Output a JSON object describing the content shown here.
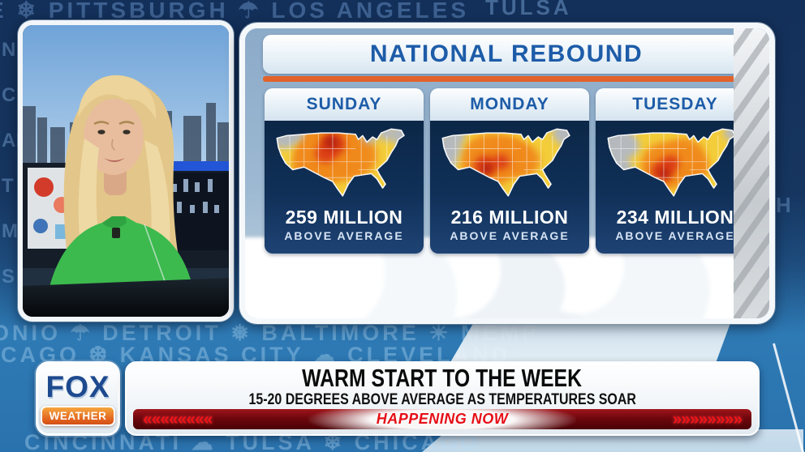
{
  "station": {
    "logo_top": "FOX",
    "logo_bottom": "WEATHER"
  },
  "panel": {
    "title": "NATIONAL REBOUND",
    "columns": [
      {
        "day": "SUNDAY",
        "value": "259 MILLION",
        "caption": "ABOVE AVERAGE"
      },
      {
        "day": "MONDAY",
        "value": "216 MILLION",
        "caption": "ABOVE AVERAGE"
      },
      {
        "day": "TUESDAY",
        "value": "234 MILLION",
        "caption": "ABOVE AVERAGE"
      }
    ]
  },
  "lower_third": {
    "headline": "WARM START TO THE WEEK",
    "subheadline": "15-20 DEGREES ABOVE AVERAGE AS TEMPERATURES SOAR",
    "ticker_label": "HAPPENING NOW",
    "chevrons_left": "««««««««",
    "chevrons_right": "»»»»»»»»"
  },
  "background": {
    "ticker_top": "E ❄ PITTSBURGH ☂ LOS ANGELES",
    "fragment_top_right": "TULSA",
    "ticker_mid_1": "ONIO ☂ DETROIT ❅ BALTIMORE ☀ MEMP",
    "ticker_mid_2": "HICAGO ❆ KANSAS CITY ☁ CLEVELAND",
    "ticker_bottom": "CINCINNATI ☁ TULSA ❄ CHICAGO",
    "left_column": "N\nC\nAL\nT\nM\nS",
    "right_fragment": "H"
  },
  "colors": {
    "accent_orange": "#e2622b",
    "title_blue": "#1d5ca8",
    "panel_navy": "#0d2b4e",
    "ticker_red": "#e60f17",
    "presenter_top_green": "#3cba4e"
  }
}
